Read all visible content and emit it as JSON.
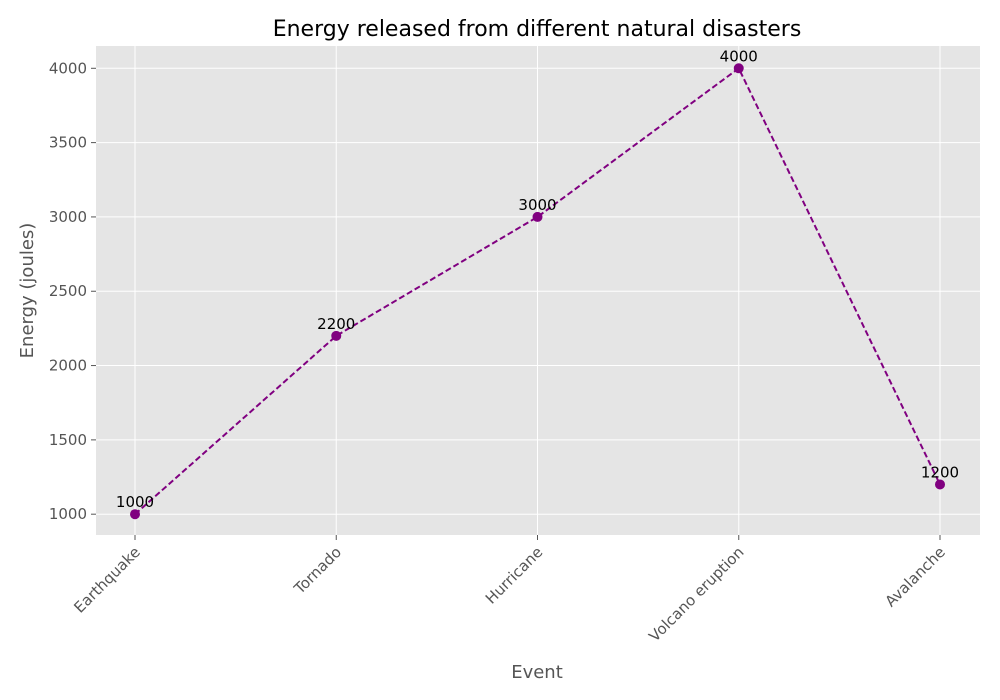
{
  "chart_data": {
    "type": "line",
    "title": "Energy released from different natural disasters",
    "xlabel": "Event",
    "ylabel": "Energy (joules)",
    "categories": [
      "Earthquake",
      "Tornado",
      "Hurricane",
      "Volcano eruption",
      "Avalanche"
    ],
    "series": [
      {
        "values": [
          1000,
          2200,
          3000,
          4000,
          1200
        ],
        "color": "#800080",
        "line_style": "dashed",
        "marker": "circle"
      }
    ],
    "data_labels": [
      "1000",
      "2200",
      "3000",
      "4000",
      "1200"
    ],
    "ylim": [
      860,
      4150
    ],
    "yticks": [
      1000,
      1500,
      2000,
      2500,
      3000,
      3500,
      4000
    ],
    "ytick_labels": [
      "1000",
      "1500",
      "2000",
      "2500",
      "3000",
      "3500",
      "4000"
    ],
    "grid": true,
    "style": "ggplot",
    "plot_background": "#e5e5e5",
    "grid_color": "#ffffff"
  }
}
